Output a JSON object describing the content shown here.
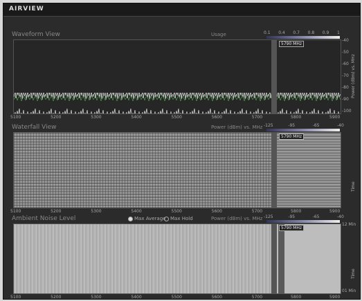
{
  "header": {
    "title": "AIRVIEW"
  },
  "waveform": {
    "title": "Waveform View",
    "legend": "Usage",
    "scale": [
      "0.1",
      "0.4",
      "0.7",
      "0.8",
      "0.9",
      "1"
    ],
    "marker": "5790 MHz",
    "y_labels": [
      "-40",
      "-50",
      "-60",
      "-70",
      "-80",
      "-90",
      "-100"
    ],
    "y_title": "Power (dBm) vs. MHz",
    "x_labels": [
      "5100",
      "5200",
      "5300",
      "5400",
      "5500",
      "5600",
      "5700"
    ],
    "zoom_x_labels": [
      "5800",
      "5900"
    ]
  },
  "waterfall": {
    "title": "Waterfall View",
    "legend": "Power (dBm) vs. MHz",
    "scale": [
      "-125",
      "-95",
      "-65",
      "-40"
    ],
    "marker": "5790 MHz",
    "y_title": "Time",
    "x_labels": [
      "5100",
      "5200",
      "5300",
      "5400",
      "5500",
      "5600",
      "5700"
    ],
    "zoom_x_labels": [
      "5800",
      "5900"
    ]
  },
  "ambient": {
    "title": "Ambient Noise Level",
    "options": [
      "Max Average",
      "Max Hold"
    ],
    "legend": "Power (dBm) vs. MHz",
    "scale": [
      "-125",
      "-95",
      "-65",
      "-40"
    ],
    "marker": "5790 MHz",
    "y_labels": [
      "12 Min",
      "01 Min"
    ],
    "y_title": "Time",
    "x_labels": [
      "5100",
      "5200",
      "5300",
      "5400",
      "5500",
      "5600",
      "5700"
    ],
    "zoom_x_labels": [
      "5800",
      "5900"
    ]
  }
}
